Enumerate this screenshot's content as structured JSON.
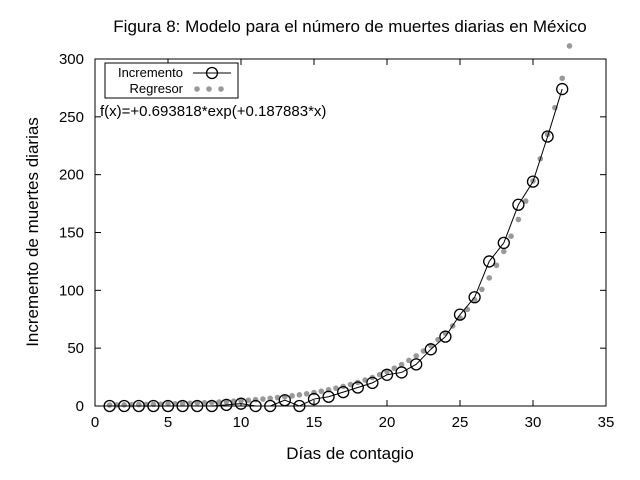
{
  "chart_data": {
    "type": "line",
    "title": "Figura 8: Modelo para el número de muertes diarias en México",
    "xlabel": "Días de contagio",
    "ylabel": "Incremento de muertes diarias",
    "xlim": [
      0,
      35
    ],
    "ylim": [
      0,
      300
    ],
    "xticks": [
      0,
      5,
      10,
      15,
      20,
      25,
      30,
      35
    ],
    "yticks": [
      0,
      50,
      100,
      150,
      200,
      250,
      300
    ],
    "grid": false,
    "legend_position": "top-left",
    "annotation": "f(x)=+0.693818*exp(+0.187883*x)",
    "series": [
      {
        "name": "Incremento",
        "style": "line-open-circles",
        "color": "#000000",
        "x": [
          1,
          2,
          3,
          4,
          5,
          6,
          7,
          8,
          9,
          10,
          11,
          12,
          13,
          14,
          15,
          16,
          17,
          18,
          19,
          20,
          21,
          22,
          23,
          24,
          25,
          26,
          27,
          28,
          29,
          30,
          31,
          32
        ],
        "y": [
          0,
          0,
          0,
          0,
          0,
          0,
          0,
          0,
          1,
          2,
          0,
          0,
          5,
          0,
          6,
          8,
          12,
          16,
          20,
          27,
          29,
          36,
          49,
          60,
          79,
          94,
          125,
          141,
          174,
          194,
          233,
          274
        ]
      },
      {
        "name": "Regresor",
        "style": "points",
        "color": "#999999",
        "model": {
          "a": 0.693818,
          "b": 0.187883,
          "x_start": 1,
          "x_end": 32.5,
          "x_step": 0.5
        }
      }
    ]
  }
}
